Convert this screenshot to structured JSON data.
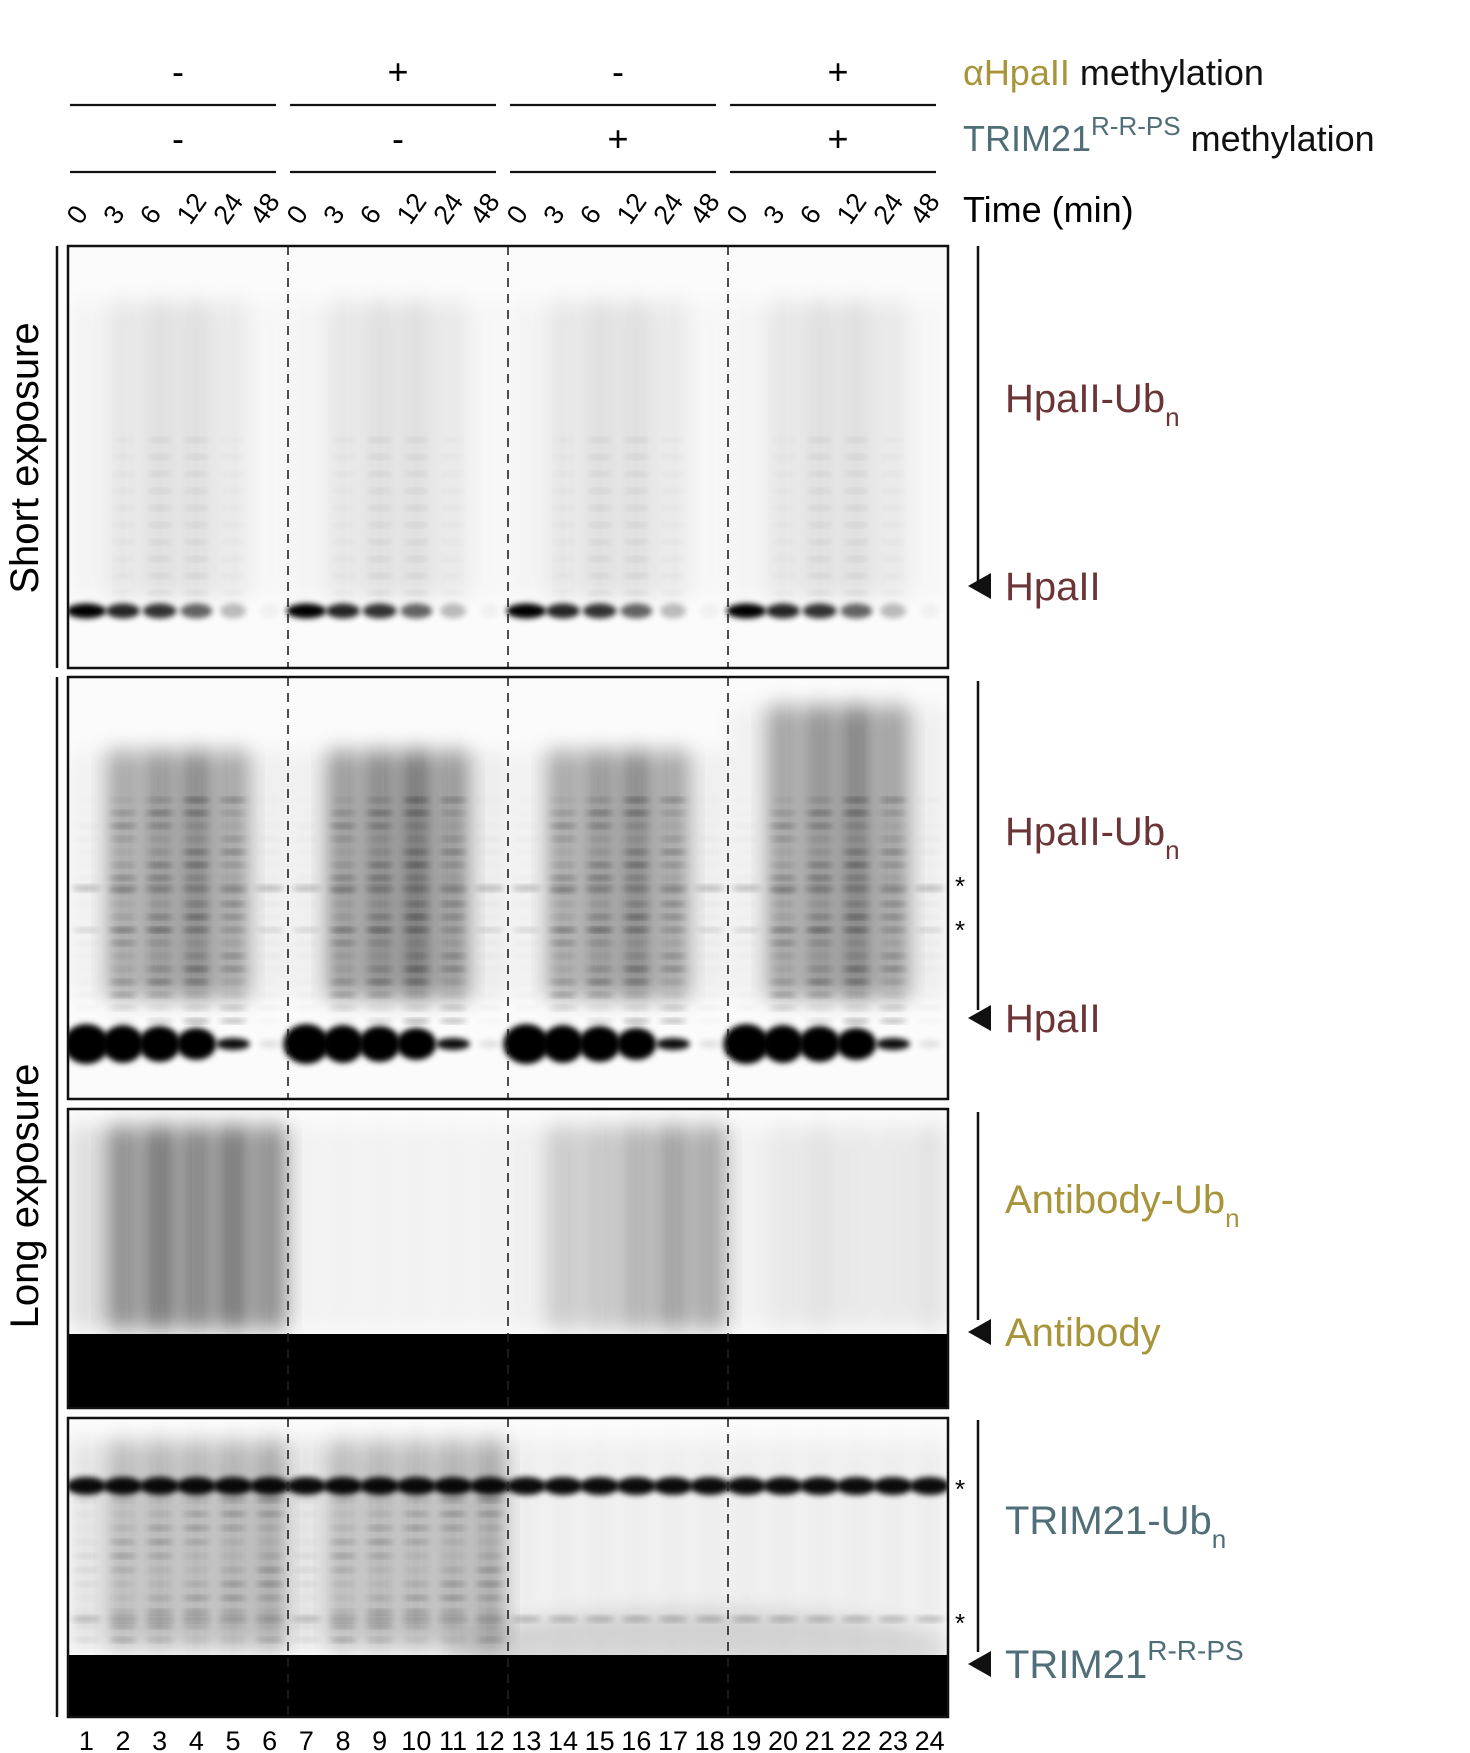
{
  "colors": {
    "hpaii": "#6b3436",
    "antibody": "#a8943a",
    "trim21": "#4f6e78",
    "ink": "#111111"
  },
  "header": {
    "row1": {
      "name": "αHpaII methylation",
      "name_colored": "αHpaII",
      "name_rest": " methylation",
      "signs": [
        "-",
        "+",
        "-",
        "+"
      ]
    },
    "row2": {
      "name_colored": "TRIM21",
      "superscript": "R-R-PS",
      "name_rest": " methylation",
      "signs": [
        "-",
        "-",
        "+",
        "+"
      ]
    },
    "time_label": "Time (min)",
    "time_points": [
      "0",
      "3",
      "6",
      "12",
      "24",
      "48"
    ]
  },
  "exposures": {
    "short": "Short exposure",
    "long": "Long exposure"
  },
  "panels": [
    {
      "id": "short-hpaii",
      "labels": [
        {
          "text": "HpaII-Ub",
          "sub": "n",
          "color": "hpaii"
        },
        {
          "text": "HpaII",
          "sub": "",
          "color": "hpaii",
          "arrow": true
        }
      ],
      "stars": 0
    },
    {
      "id": "long-hpaii",
      "labels": [
        {
          "text": "HpaII-Ub",
          "sub": "n",
          "color": "hpaii"
        },
        {
          "text": "HpaII",
          "sub": "",
          "color": "hpaii",
          "arrow": true
        }
      ],
      "stars": 2
    },
    {
      "id": "long-antibody",
      "labels": [
        {
          "text": "Antibody-Ub",
          "sub": "n",
          "color": "antibody"
        },
        {
          "text": "Antibody",
          "sub": "",
          "color": "antibody",
          "arrow": true
        }
      ],
      "stars": 0
    },
    {
      "id": "long-trim21",
      "labels": [
        {
          "text": "TRIM21-Ub",
          "sub": "n",
          "color": "trim21"
        },
        {
          "text": "TRIM21",
          "sup": "R-R-PS",
          "color": "trim21",
          "arrow": true
        }
      ],
      "stars": 2
    }
  ],
  "star_symbol": "*",
  "lane_numbers": [
    "1",
    "2",
    "3",
    "4",
    "5",
    "6",
    "7",
    "8",
    "9",
    "10",
    "11",
    "12",
    "13",
    "14",
    "15",
    "16",
    "17",
    "18",
    "19",
    "20",
    "21",
    "22",
    "23",
    "24"
  ]
}
